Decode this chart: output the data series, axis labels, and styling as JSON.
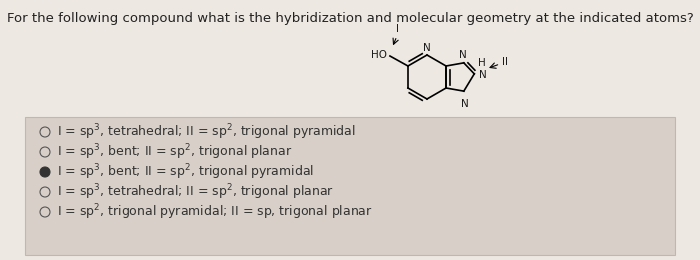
{
  "title": "For the following compound what is the hybridization and molecular geometry at the indicated atoms?",
  "title_fontsize": 9.5,
  "title_color": "#222222",
  "top_bg": "#ede8e2",
  "bottom_bg": "#d8d0c8",
  "options": [
    {
      "text": "I = sp$^3$, tetrahedral; II = sp$^2$, trigonal pyramidal",
      "selected": false
    },
    {
      "text": "I = sp$^3$, bent; II = sp$^2$, trigonal planar",
      "selected": false
    },
    {
      "text": "I = sp$^3$, bent; II = sp$^2$, trigonal pyramidal",
      "selected": true
    },
    {
      "text": "I = sp$^3$, tetrahedral; II = sp$^2$, trigonal planar",
      "selected": false
    },
    {
      "text": "I = sp$^2$, trigonal pyramidal; II = sp, trigonal planar",
      "selected": false
    }
  ],
  "option_fontsize": 9.0,
  "text_color": "#333333",
  "circle_color": "#555555"
}
